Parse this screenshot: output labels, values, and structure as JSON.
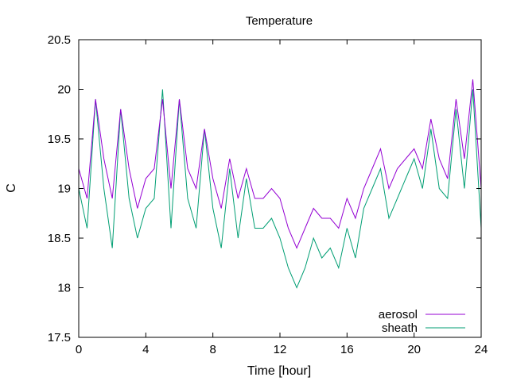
{
  "chart_data": {
    "type": "line",
    "title": "Temperature",
    "xlabel": "Time [hour]",
    "ylabel": "C",
    "xlim": [
      0,
      24
    ],
    "ylim": [
      17.5,
      20.5
    ],
    "xticks": [
      0,
      4,
      8,
      12,
      16,
      20,
      24
    ],
    "xtick_labels": [
      "0",
      "4",
      "8",
      "12",
      "16",
      "20",
      "24"
    ],
    "yticks": [
      17.5,
      18,
      18.5,
      19,
      19.5,
      20,
      20.5
    ],
    "ytick_labels": [
      "17.5",
      "18",
      "18.5",
      "19",
      "19.5",
      "20",
      "20.5"
    ],
    "grid": false,
    "legend_position": "bottom-right",
    "colors": {
      "aerosol": "#9400d3",
      "sheath": "#009e73"
    },
    "series": [
      {
        "name": "aerosol",
        "x": [
          0,
          0.5,
          1,
          1.5,
          2,
          2.5,
          3,
          3.5,
          4,
          4.5,
          5,
          5.5,
          6,
          6.5,
          7,
          7.5,
          8,
          8.5,
          9,
          9.5,
          10,
          10.5,
          11,
          11.5,
          12,
          12.5,
          13,
          13.5,
          14,
          14.5,
          15,
          15.5,
          16,
          16.5,
          17,
          17.5,
          18,
          18.5,
          19,
          19.5,
          20,
          20.5,
          21,
          21.5,
          22,
          22.5,
          23,
          23.5,
          24
        ],
        "values": [
          19.2,
          18.9,
          19.9,
          19.3,
          18.9,
          19.8,
          19.2,
          18.8,
          19.1,
          19.2,
          19.9,
          19.0,
          19.9,
          19.2,
          19.0,
          19.6,
          19.1,
          18.8,
          19.3,
          18.9,
          19.2,
          18.9,
          18.9,
          19.0,
          18.9,
          18.6,
          18.4,
          18.6,
          18.8,
          18.7,
          18.7,
          18.6,
          18.9,
          18.7,
          19.0,
          19.2,
          19.4,
          19.0,
          19.2,
          19.3,
          19.4,
          19.2,
          19.7,
          19.3,
          19.1,
          19.9,
          19.3,
          20.1,
          19.0
        ]
      },
      {
        "name": "sheath",
        "x": [
          0,
          0.5,
          1,
          1.5,
          2,
          2.5,
          3,
          3.5,
          4,
          4.5,
          5,
          5.5,
          6,
          6.5,
          7,
          7.5,
          8,
          8.5,
          9,
          9.5,
          10,
          10.5,
          11,
          11.5,
          12,
          12.5,
          13,
          13.5,
          14,
          14.5,
          15,
          15.5,
          16,
          16.5,
          17,
          17.5,
          18,
          18.5,
          19,
          19.5,
          20,
          20.5,
          21,
          21.5,
          22,
          22.5,
          23,
          23.5,
          24
        ],
        "values": [
          19.0,
          18.6,
          19.9,
          19.0,
          18.4,
          19.8,
          18.9,
          18.5,
          18.8,
          18.9,
          20.0,
          18.6,
          19.9,
          18.9,
          18.6,
          19.6,
          18.8,
          18.4,
          19.2,
          18.5,
          19.1,
          18.6,
          18.6,
          18.7,
          18.5,
          18.2,
          18.0,
          18.2,
          18.5,
          18.3,
          18.4,
          18.2,
          18.6,
          18.3,
          18.8,
          19.0,
          19.2,
          18.7,
          18.9,
          19.1,
          19.3,
          19.0,
          19.6,
          19.0,
          18.9,
          19.8,
          19.0,
          20.0,
          18.6
        ]
      }
    ]
  }
}
